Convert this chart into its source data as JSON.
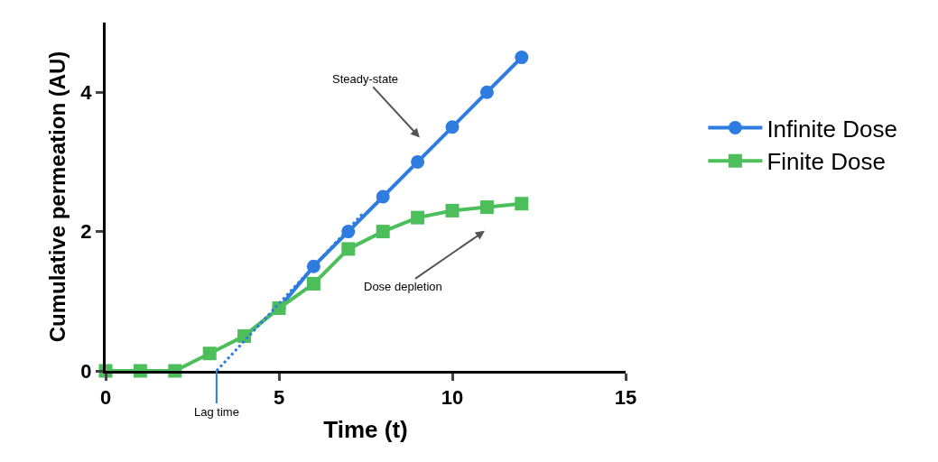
{
  "chart_data": {
    "type": "line",
    "xlabel": "Time (t)",
    "ylabel": "Cumulative permeation (AU)",
    "x": [
      0,
      1,
      2,
      3,
      4,
      5,
      6,
      7,
      8,
      9,
      10,
      11,
      12
    ],
    "series": [
      {
        "name": "Infinite Dose",
        "color": "#2f7ce0",
        "marker": "circle",
        "values": [
          null,
          null,
          null,
          null,
          0.5,
          0.9,
          1.5,
          2,
          2.5,
          3,
          3.5,
          4,
          4.5
        ]
      },
      {
        "name": "Finite Dose",
        "color": "#4cbf5a",
        "marker": "square",
        "values": [
          0,
          0,
          0,
          0.25,
          0.5,
          0.9,
          1.25,
          1.75,
          2,
          2.2,
          2.3,
          2.35,
          2.4
        ]
      },
      {
        "type": "line",
        "color": "#2f7ce0",
        "line_style": "dotted",
        "marker": "none",
        "x": [
          3.2,
          7.4
        ],
        "values": [
          0,
          2.25
        ]
      }
    ],
    "xlim": [
      0,
      15
    ],
    "xticks": [
      0,
      5,
      10,
      15
    ],
    "ylim": [
      0,
      5
    ],
    "yticks": [
      0,
      2,
      4
    ],
    "grid": false,
    "legend": "right",
    "line_style": "solid",
    "annotations": [
      "Steady-state",
      "Dose depletion",
      {
        "text": "Lag time",
        "x": 3.2,
        "y": 0
      }
    ]
  }
}
